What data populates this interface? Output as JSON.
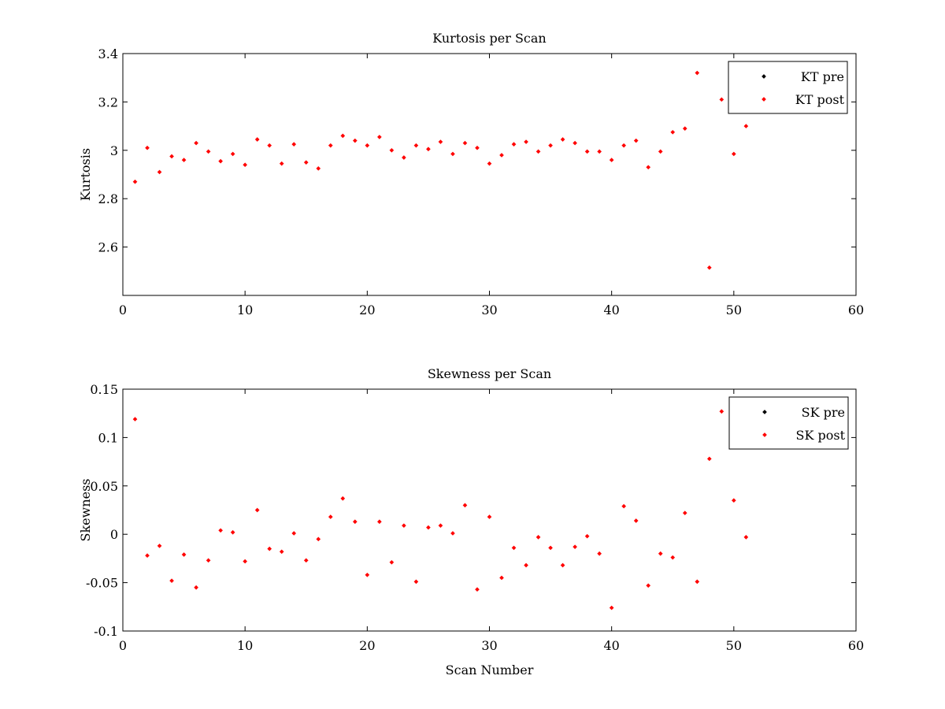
{
  "chart_data": [
    {
      "type": "scatter",
      "title": "Kurtosis per Scan",
      "xlabel": "",
      "ylabel": "Kurtosis",
      "xlim": [
        0,
        60
      ],
      "ylim": [
        2.4,
        3.4
      ],
      "xticks": [
        "0",
        "10",
        "20",
        "30",
        "40",
        "50",
        "60"
      ],
      "yticks": [
        "2.6",
        "2.8",
        "3",
        "3.2",
        "3.4"
      ],
      "legend_position": "top-right",
      "series": [
        {
          "name": "KT pre",
          "color": "#000000",
          "x": [],
          "y": []
        },
        {
          "name": "KT post",
          "color": "#ff0000",
          "x": [
            1,
            2,
            3,
            4,
            5,
            6,
            7,
            8,
            9,
            10,
            11,
            12,
            13,
            14,
            15,
            16,
            17,
            18,
            19,
            20,
            21,
            22,
            23,
            24,
            25,
            26,
            27,
            28,
            29,
            30,
            31,
            32,
            33,
            34,
            35,
            36,
            37,
            38,
            39,
            40,
            41,
            42,
            43,
            44,
            45,
            46,
            47,
            48,
            49,
            50,
            51
          ],
          "y": [
            2.87,
            3.01,
            2.91,
            2.975,
            2.96,
            3.03,
            2.995,
            2.955,
            2.985,
            2.94,
            3.045,
            3.02,
            2.945,
            3.025,
            2.95,
            2.925,
            3.02,
            3.06,
            3.04,
            3.02,
            3.055,
            3.0,
            2.97,
            3.02,
            3.005,
            3.035,
            2.985,
            3.03,
            3.01,
            2.945,
            2.98,
            3.025,
            3.035,
            2.995,
            3.02,
            3.045,
            3.03,
            2.995,
            2.995,
            2.96,
            3.02,
            3.04,
            2.93,
            2.995,
            3.075,
            3.09,
            3.32,
            2.515,
            3.21,
            2.985,
            3.1
          ]
        }
      ]
    },
    {
      "type": "scatter",
      "title": "Skewness per Scan",
      "xlabel": "Scan Number",
      "ylabel": "Skewness",
      "xlim": [
        0,
        60
      ],
      "ylim": [
        -0.1,
        0.15
      ],
      "xticks": [
        "0",
        "10",
        "20",
        "30",
        "40",
        "50",
        "60"
      ],
      "yticks": [
        "-0.1",
        "-0.05",
        "0",
        "0.05",
        "0.1",
        "0.15"
      ],
      "legend_position": "top-right",
      "series": [
        {
          "name": "SK pre",
          "color": "#000000",
          "x": [],
          "y": []
        },
        {
          "name": "SK post",
          "color": "#ff0000",
          "x": [
            1,
            2,
            3,
            4,
            5,
            6,
            7,
            8,
            9,
            10,
            11,
            12,
            13,
            14,
            15,
            16,
            17,
            18,
            19,
            20,
            21,
            22,
            23,
            24,
            25,
            26,
            27,
            28,
            29,
            30,
            31,
            32,
            33,
            34,
            35,
            36,
            37,
            38,
            39,
            40,
            41,
            42,
            43,
            44,
            45,
            46,
            47,
            48,
            49,
            50,
            51
          ],
          "y": [
            0.119,
            -0.022,
            -0.012,
            -0.048,
            -0.021,
            -0.055,
            -0.027,
            0.004,
            0.002,
            -0.028,
            0.025,
            -0.015,
            -0.018,
            0.001,
            -0.027,
            -0.005,
            0.018,
            0.037,
            0.013,
            -0.042,
            0.013,
            -0.029,
            0.009,
            -0.049,
            0.007,
            0.009,
            0.001,
            0.03,
            -0.057,
            0.018,
            -0.045,
            -0.014,
            -0.032,
            -0.003,
            -0.014,
            -0.032,
            -0.013,
            -0.002,
            -0.02,
            -0.076,
            0.029,
            0.014,
            -0.053,
            -0.02,
            -0.024,
            0.022,
            -0.049,
            0.078,
            0.127,
            0.035,
            -0.003
          ]
        }
      ]
    }
  ]
}
